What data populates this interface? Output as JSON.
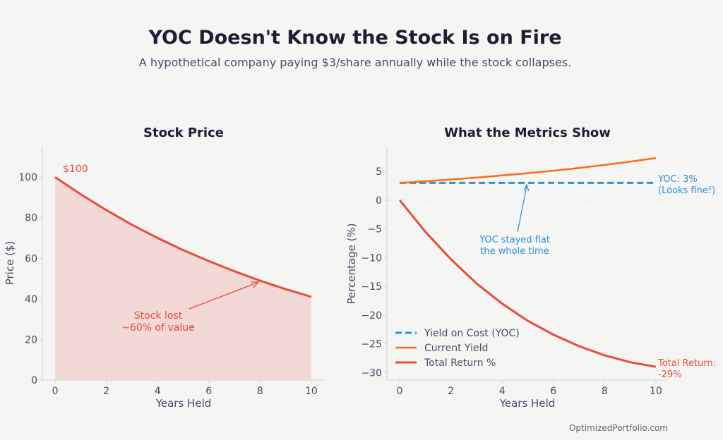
{
  "title": "YOC Doesn't Know the Stock Is on Fire",
  "subtitle": "A hypothetical company paying $3/share annually while the stock collapses.",
  "footer": "OptimizedPortfolio.com",
  "colors": {
    "background": "#f5f5f3",
    "price": "#e74c3c",
    "price_fill": "#f2d9d5",
    "yoc": "#2e8fd4",
    "current_yield": "#ff6a13",
    "total_return": "#e74c3c",
    "text": "#4a4a6a",
    "title": "#1e1e32"
  },
  "chart_data": [
    {
      "type": "area",
      "title": "Stock Price",
      "xlabel": "Years Held",
      "ylabel": "Price ($)",
      "xlim": [
        -0.5,
        10.5
      ],
      "ylim": [
        0,
        115
      ],
      "xticks": [
        0,
        2,
        4,
        6,
        8,
        10
      ],
      "yticks": [
        0,
        20,
        40,
        60,
        80,
        100
      ],
      "grid": false,
      "x": [
        0,
        1,
        2,
        3,
        4,
        5,
        6,
        7,
        8,
        9,
        10
      ],
      "series": [
        {
          "values": [
            100,
            91.5,
            83.7,
            76.5,
            70.0,
            64.0,
            58.6,
            53.6,
            49.0,
            44.8,
            41.0
          ]
        }
      ],
      "annotations": [
        {
          "text": "$100",
          "x": 0,
          "y": 100
        },
        {
          "text": "Stock lost\n~60% of value",
          "x": 8,
          "y": 49
        }
      ]
    },
    {
      "type": "line",
      "title": "What the Metrics Show",
      "xlabel": "Years Held",
      "ylabel": "Percentage (%)",
      "xlim": [
        -0.5,
        10.5
      ],
      "ylim": [
        -31.3,
        9.3
      ],
      "xticks": [
        0,
        2,
        4,
        6,
        8,
        10
      ],
      "yticks": [
        5,
        0,
        -5,
        -10,
        -15,
        -20,
        -25,
        -30
      ],
      "ytick_labels": [
        "5",
        "0",
        "−5",
        "−10",
        "−15",
        "−20",
        "−25",
        "−30"
      ],
      "grid": false,
      "legend": "lower-left",
      "x": [
        0,
        1,
        2,
        3,
        4,
        5,
        6,
        7,
        8,
        9,
        10
      ],
      "series": [
        {
          "name": "Yield on Cost (YOC)",
          "style": "dashed",
          "values": [
            3,
            3,
            3,
            3,
            3,
            3,
            3,
            3,
            3,
            3,
            3
          ]
        },
        {
          "name": "Current Yield",
          "style": "solid",
          "values": [
            3.0,
            3.28,
            3.59,
            3.92,
            4.29,
            4.69,
            5.12,
            5.6,
            6.12,
            6.69,
            7.32
          ]
        },
        {
          "name": "Total Return %",
          "style": "solid",
          "values": [
            0,
            -5.5,
            -10.3,
            -14.5,
            -18.0,
            -21.0,
            -23.4,
            -25.4,
            -27.0,
            -28.2,
            -29.0
          ]
        }
      ],
      "annotations": [
        {
          "text": "YOC: 3%\n(Looks fine!)",
          "x": 10,
          "y": 3
        },
        {
          "text": "YOC stayed flat\nthe whole time",
          "x": 5,
          "y": 3
        },
        {
          "text": "Total Return:\n-29%",
          "x": 10,
          "y": -29
        }
      ]
    }
  ]
}
